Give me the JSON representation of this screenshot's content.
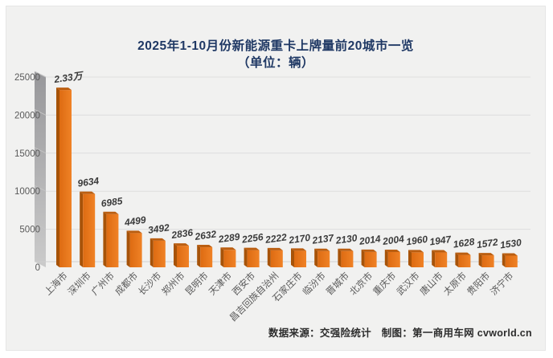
{
  "title": {
    "line1": "2025年1-10月份新能源重卡上牌量前20城市一览",
    "line2": "（单位：辆）",
    "color": "#1f3864"
  },
  "footer": {
    "text": "数据来源：交强险统计　制图：第一商用车网 cvworld.cn"
  },
  "chart_data": {
    "type": "bar",
    "title": "2025年1-10月份新能源重卡上牌量前20城市一览",
    "subtitle": "（单位：辆）",
    "unit": "辆",
    "categories": [
      "上海市",
      "深圳市",
      "广州市",
      "成都市",
      "长沙市",
      "郑州市",
      "昆明市",
      "天津市",
      "西安市",
      "昌吉回族自治州",
      "石家庄市",
      "临汾市",
      "晋城市",
      "北京市",
      "重庆市",
      "武汉市",
      "唐山市",
      "太原市",
      "贵阳市",
      "济宁市"
    ],
    "values": [
      23300,
      9634,
      6985,
      4499,
      3492,
      2836,
      2632,
      2289,
      2256,
      2222,
      2170,
      2137,
      2130,
      2014,
      2004,
      1960,
      1947,
      1628,
      1572,
      1530
    ],
    "value_labels": [
      "2.33万",
      "9634",
      "6985",
      "4499",
      "3492",
      "2836",
      "2632",
      "2289",
      "2256",
      "2222",
      "2170",
      "2137",
      "2130",
      "2014",
      "2004",
      "1960",
      "1947",
      "1628",
      "1572",
      "1530"
    ],
    "xlabel": "",
    "ylabel": "",
    "ylim": [
      0,
      25000
    ],
    "yticks": [
      0,
      5000,
      10000,
      15000,
      20000,
      25000
    ],
    "grid": true,
    "legend": "none",
    "style_3d": true,
    "colors": {
      "bar_front_left": "#dd6b12",
      "bar_front_right": "#f08226",
      "bar_side": "#a75309",
      "bar_top": "#bb5e10",
      "grid": "#dedede",
      "floor_line": "#cfcfcf",
      "wall_top": "#97979a",
      "wall_bottom": "#cbcbcb",
      "wall_edge": "#c4c4c4",
      "axis_text": "#595959",
      "value_text": "#3a3a3a",
      "background": "#f1f1f0"
    }
  }
}
